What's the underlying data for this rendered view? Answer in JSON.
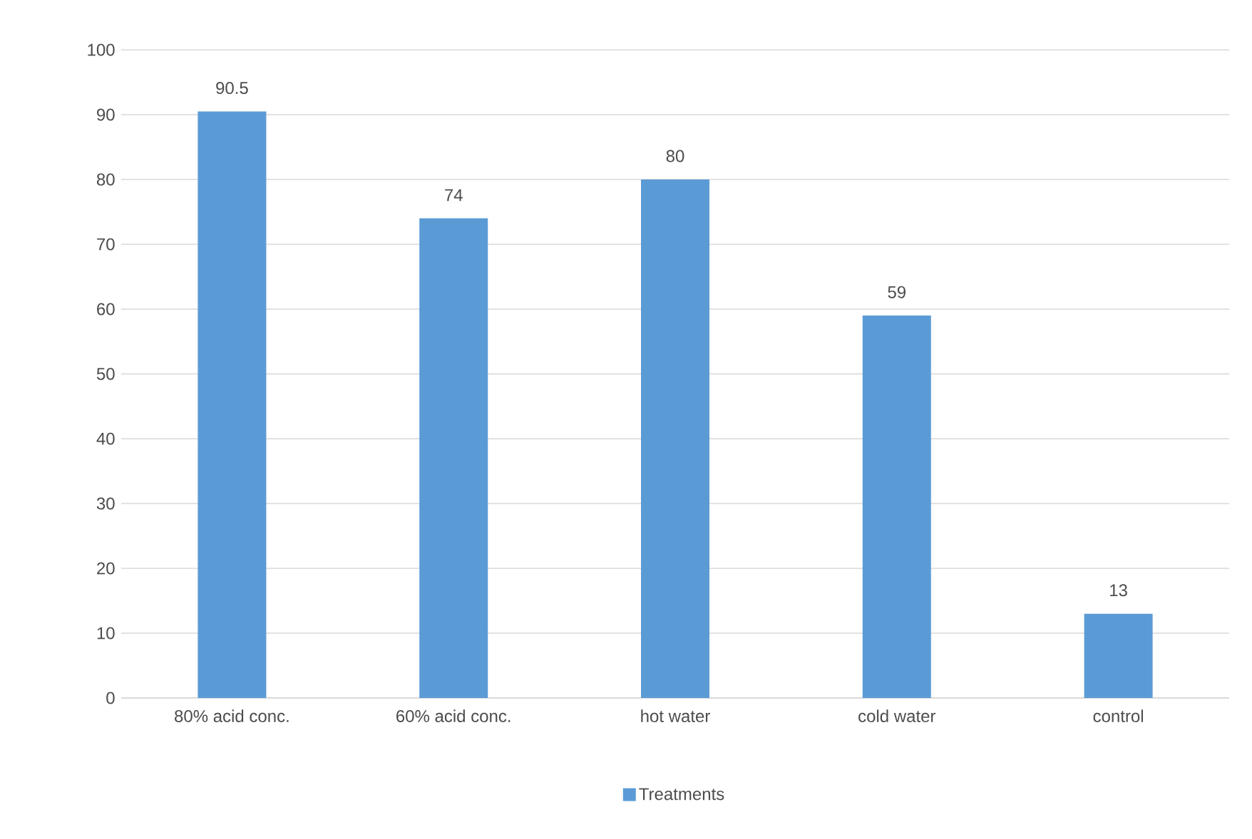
{
  "chart_data": {
    "type": "bar",
    "categories": [
      "80% acid conc.",
      "60% acid conc.",
      "hot water",
      "cold water",
      "control"
    ],
    "series": [
      {
        "name": "Treatments",
        "color": "#5b9bd5",
        "values": [
          90.5,
          74,
          80,
          59,
          13
        ]
      }
    ],
    "ylim": [
      0,
      100
    ],
    "yticks": [
      0,
      10,
      20,
      30,
      40,
      50,
      60,
      70,
      80,
      90,
      100
    ],
    "grid": "y",
    "data_labels": true,
    "legend": "bottom"
  }
}
